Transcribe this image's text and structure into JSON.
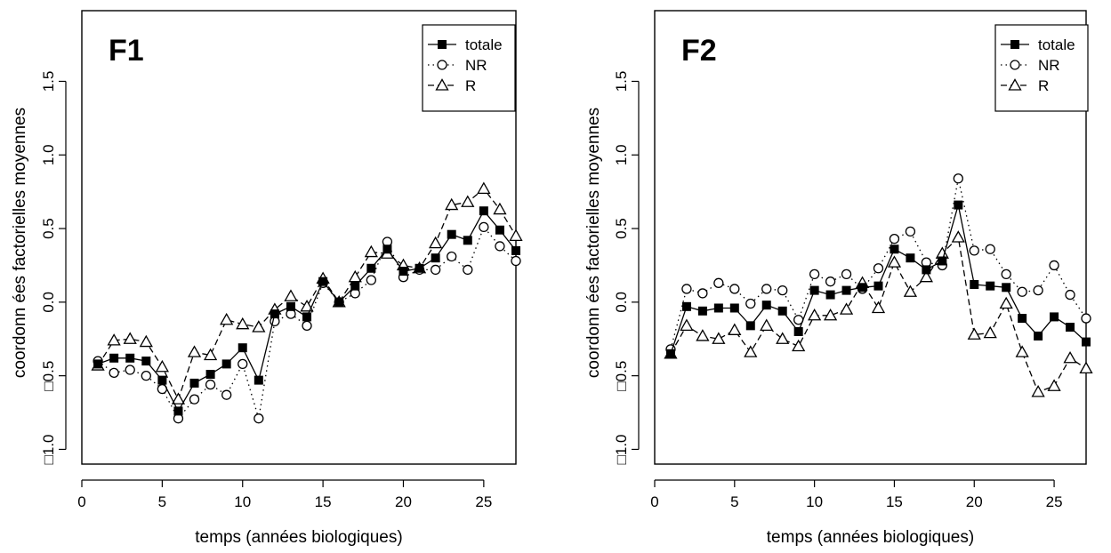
{
  "chart_data": [
    {
      "type": "line",
      "title": "F1",
      "xlabel": "temps (années biologiques)",
      "ylabel": "coordonn ées factorielles moyennes",
      "xlim": [
        0,
        27
      ],
      "ylim": [
        -1.0,
        1.75
      ],
      "x_ticks": [
        0,
        5,
        10,
        15,
        20,
        25
      ],
      "x_tick_labels": [
        "0",
        "5",
        "10",
        "15",
        "20",
        "25"
      ],
      "y_ticks": [
        -1.0,
        -0.5,
        0.0,
        0.5,
        1.0,
        1.5
      ],
      "y_tick_labels": [
        "□1.0",
        "□0.5",
        "0.0",
        "0.5",
        "1.0",
        "1.5"
      ],
      "grid": false,
      "legend_position": "top-right",
      "x": [
        1,
        2,
        3,
        4,
        5,
        6,
        7,
        8,
        9,
        10,
        11,
        12,
        13,
        14,
        15,
        16,
        17,
        18,
        19,
        20,
        21,
        22,
        23,
        24,
        25,
        26,
        27
      ],
      "series": [
        {
          "name": "totale",
          "marker": "filled-square",
          "line": "solid",
          "values": [
            -0.42,
            -0.38,
            -0.38,
            -0.4,
            -0.53,
            -0.74,
            -0.55,
            -0.49,
            -0.42,
            -0.31,
            -0.53,
            -0.08,
            -0.03,
            -0.1,
            0.14,
            0.0,
            0.11,
            0.23,
            0.36,
            0.21,
            0.23,
            0.3,
            0.46,
            0.42,
            0.62,
            0.49,
            0.35
          ]
        },
        {
          "name": "NR",
          "marker": "open-circle",
          "line": "dotted",
          "values": [
            -0.4,
            -0.48,
            -0.46,
            -0.5,
            -0.59,
            -0.79,
            -0.66,
            -0.56,
            -0.63,
            -0.42,
            -0.79,
            -0.13,
            -0.08,
            -0.16,
            0.13,
            0.0,
            0.06,
            0.15,
            0.41,
            0.17,
            0.22,
            0.22,
            0.31,
            0.22,
            0.51,
            0.38,
            0.28
          ]
        },
        {
          "name": "R",
          "marker": "open-triangle",
          "line": "dashed",
          "values": [
            -0.43,
            -0.26,
            -0.25,
            -0.27,
            -0.44,
            -0.66,
            -0.34,
            -0.36,
            -0.12,
            -0.15,
            -0.17,
            -0.05,
            0.04,
            -0.03,
            0.16,
            0.0,
            0.17,
            0.34,
            0.33,
            0.25,
            0.23,
            0.4,
            0.66,
            0.68,
            0.77,
            0.63,
            0.45
          ]
        }
      ]
    },
    {
      "type": "line",
      "title": "F2",
      "xlabel": "temps (années biologiques)",
      "ylabel": "coordonn ées factorielles moyennes",
      "xlim": [
        0,
        27
      ],
      "ylim": [
        -1.0,
        1.75
      ],
      "x_ticks": [
        0,
        5,
        10,
        15,
        20,
        25
      ],
      "x_tick_labels": [
        "0",
        "5",
        "10",
        "15",
        "20",
        "25"
      ],
      "y_ticks": [
        -1.0,
        -0.5,
        0.0,
        0.5,
        1.0,
        1.5
      ],
      "y_tick_labels": [
        "□1.0",
        "□0.5",
        "0.0",
        "0.5",
        "1.0",
        "1.5"
      ],
      "grid": false,
      "legend_position": "top-right",
      "x": [
        1,
        2,
        3,
        4,
        5,
        6,
        7,
        8,
        9,
        10,
        11,
        12,
        13,
        14,
        15,
        16,
        17,
        18,
        19,
        20,
        21,
        22,
        23,
        24,
        25,
        26,
        27
      ],
      "series": [
        {
          "name": "totale",
          "marker": "filled-square",
          "line": "solid",
          "values": [
            -0.35,
            -0.03,
            -0.06,
            -0.04,
            -0.04,
            -0.16,
            -0.02,
            -0.06,
            -0.2,
            0.08,
            0.05,
            0.08,
            0.1,
            0.11,
            0.36,
            0.3,
            0.22,
            0.28,
            0.66,
            0.12,
            0.11,
            0.1,
            -0.11,
            -0.23,
            -0.1,
            -0.17,
            -0.27
          ]
        },
        {
          "name": "NR",
          "marker": "open-circle",
          "line": "dotted",
          "values": [
            -0.32,
            0.09,
            0.06,
            0.13,
            0.09,
            -0.01,
            0.09,
            0.08,
            -0.12,
            0.19,
            0.14,
            0.19,
            0.09,
            0.23,
            0.43,
            0.48,
            0.27,
            0.25,
            0.84,
            0.35,
            0.36,
            0.19,
            0.07,
            0.08,
            0.25,
            0.05,
            -0.11
          ]
        },
        {
          "name": "R",
          "marker": "open-triangle",
          "line": "dashed",
          "values": [
            -0.35,
            -0.16,
            -0.23,
            -0.25,
            -0.19,
            -0.34,
            -0.16,
            -0.25,
            -0.3,
            -0.09,
            -0.09,
            -0.05,
            0.13,
            -0.04,
            0.27,
            0.07,
            0.17,
            0.33,
            0.44,
            -0.22,
            -0.21,
            -0.01,
            -0.34,
            -0.61,
            -0.57,
            -0.38,
            -0.45
          ]
        }
      ]
    }
  ]
}
